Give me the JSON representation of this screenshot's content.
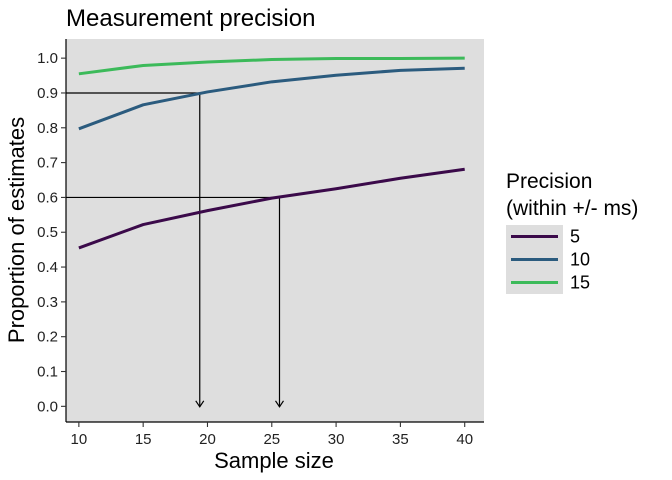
{
  "chart_data": {
    "type": "line",
    "title": "Measurement precision",
    "xlabel": "Sample size",
    "ylabel": "Proportion of estimates",
    "xlim": [
      9,
      41.5
    ],
    "ylim": [
      -0.045,
      1.055
    ],
    "xticks": [
      10,
      15,
      20,
      25,
      30,
      35,
      40
    ],
    "yticks": [
      0.0,
      0.1,
      0.2,
      0.3,
      0.4,
      0.5,
      0.6,
      0.7,
      0.8,
      0.9,
      1.0
    ],
    "xtick_labels": [
      "10",
      "15",
      "20",
      "25",
      "30",
      "35",
      "40"
    ],
    "ytick_labels": [
      "0.0",
      "0.1",
      "0.2",
      "0.3",
      "0.4",
      "0.5",
      "0.6",
      "0.7",
      "0.8",
      "0.9",
      "1.0"
    ],
    "x": [
      10,
      15,
      20,
      25,
      30,
      35,
      40
    ],
    "series": [
      {
        "name": "5",
        "color": "#3b0a4a",
        "values": [
          0.455,
          0.522,
          0.562,
          0.598,
          0.625,
          0.655,
          0.681
        ]
      },
      {
        "name": "10",
        "color": "#2b5b7e",
        "values": [
          0.797,
          0.866,
          0.903,
          0.932,
          0.951,
          0.965,
          0.971
        ]
      },
      {
        "name": "15",
        "color": "#3cba5a",
        "values": [
          0.955,
          0.979,
          0.989,
          0.996,
          0.999,
          0.999,
          1.0
        ]
      }
    ],
    "annotations": [
      {
        "type": "reference",
        "y": 0.9,
        "x_at_target": 19.4
      },
      {
        "type": "reference",
        "y": 0.6,
        "x_at_target": 25.6
      }
    ],
    "legend": {
      "title_line1": "Precision",
      "title_line2": "(within +/- ms)",
      "placement": "right"
    },
    "grid": false,
    "panel_background": "#dedede"
  }
}
